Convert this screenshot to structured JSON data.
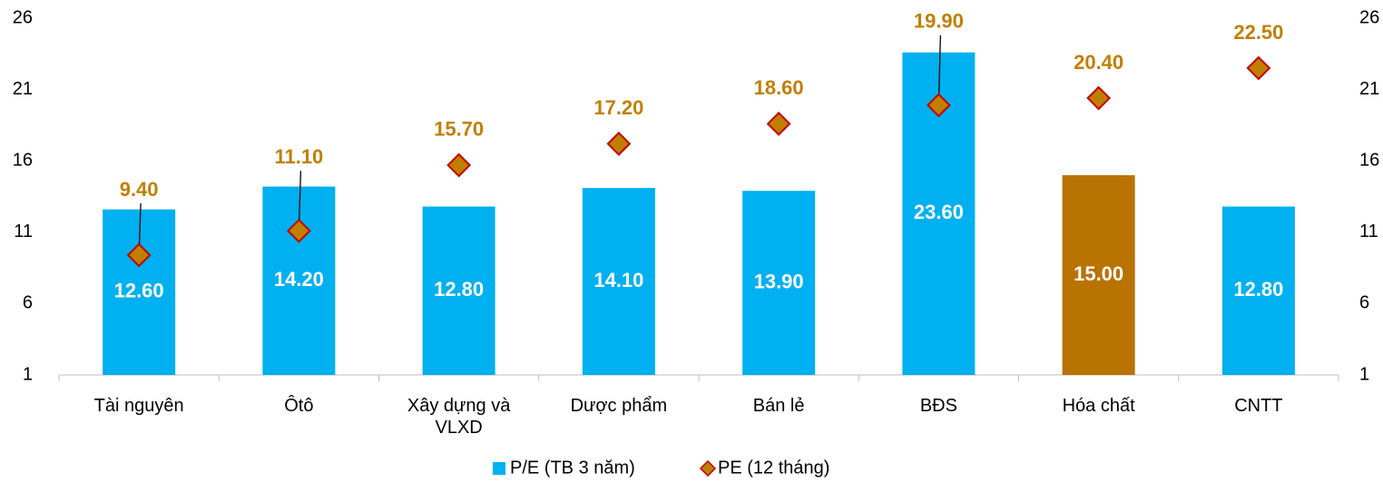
{
  "chart_data": {
    "type": "bar",
    "categories": [
      "Tài nguyên",
      "Ôtô",
      "Xây dựng và VLXD",
      "Dược phẩm",
      "Bán lẻ",
      "BĐS",
      "Hóa chất",
      "CNTT"
    ],
    "series": [
      {
        "name": "P/E (TB 3 năm)",
        "type": "bar",
        "color": "#00b0f0",
        "colors": [
          "#00b0f0",
          "#00b0f0",
          "#00b0f0",
          "#00b0f0",
          "#00b0f0",
          "#00b0f0",
          "#b87300",
          "#00b0f0"
        ],
        "values": [
          12.6,
          14.2,
          12.8,
          14.1,
          13.9,
          23.6,
          15.0,
          12.8
        ],
        "value_labels": [
          "12.60",
          "14.20",
          "12.80",
          "14.10",
          "13.90",
          "23.60",
          "15.00",
          "12.80"
        ]
      },
      {
        "name": "PE (12 tháng)",
        "type": "scatter",
        "marker": "diamond",
        "color": "#c07f00",
        "edge_color": "#c00000",
        "values": [
          9.4,
          11.1,
          15.7,
          17.2,
          18.6,
          19.9,
          20.4,
          22.5
        ],
        "value_labels": [
          "9.40",
          "11.10",
          "15.70",
          "17.20",
          "18.60",
          "19.90",
          "20.40",
          "22.50"
        ]
      }
    ],
    "ylim": [
      1,
      26
    ],
    "yticks": [
      1,
      6,
      11,
      16,
      21,
      26
    ],
    "y2lim": [
      1,
      26
    ],
    "y2ticks": [
      1,
      6,
      11,
      16,
      21,
      26
    ],
    "grid": false,
    "legend": "bottom"
  }
}
